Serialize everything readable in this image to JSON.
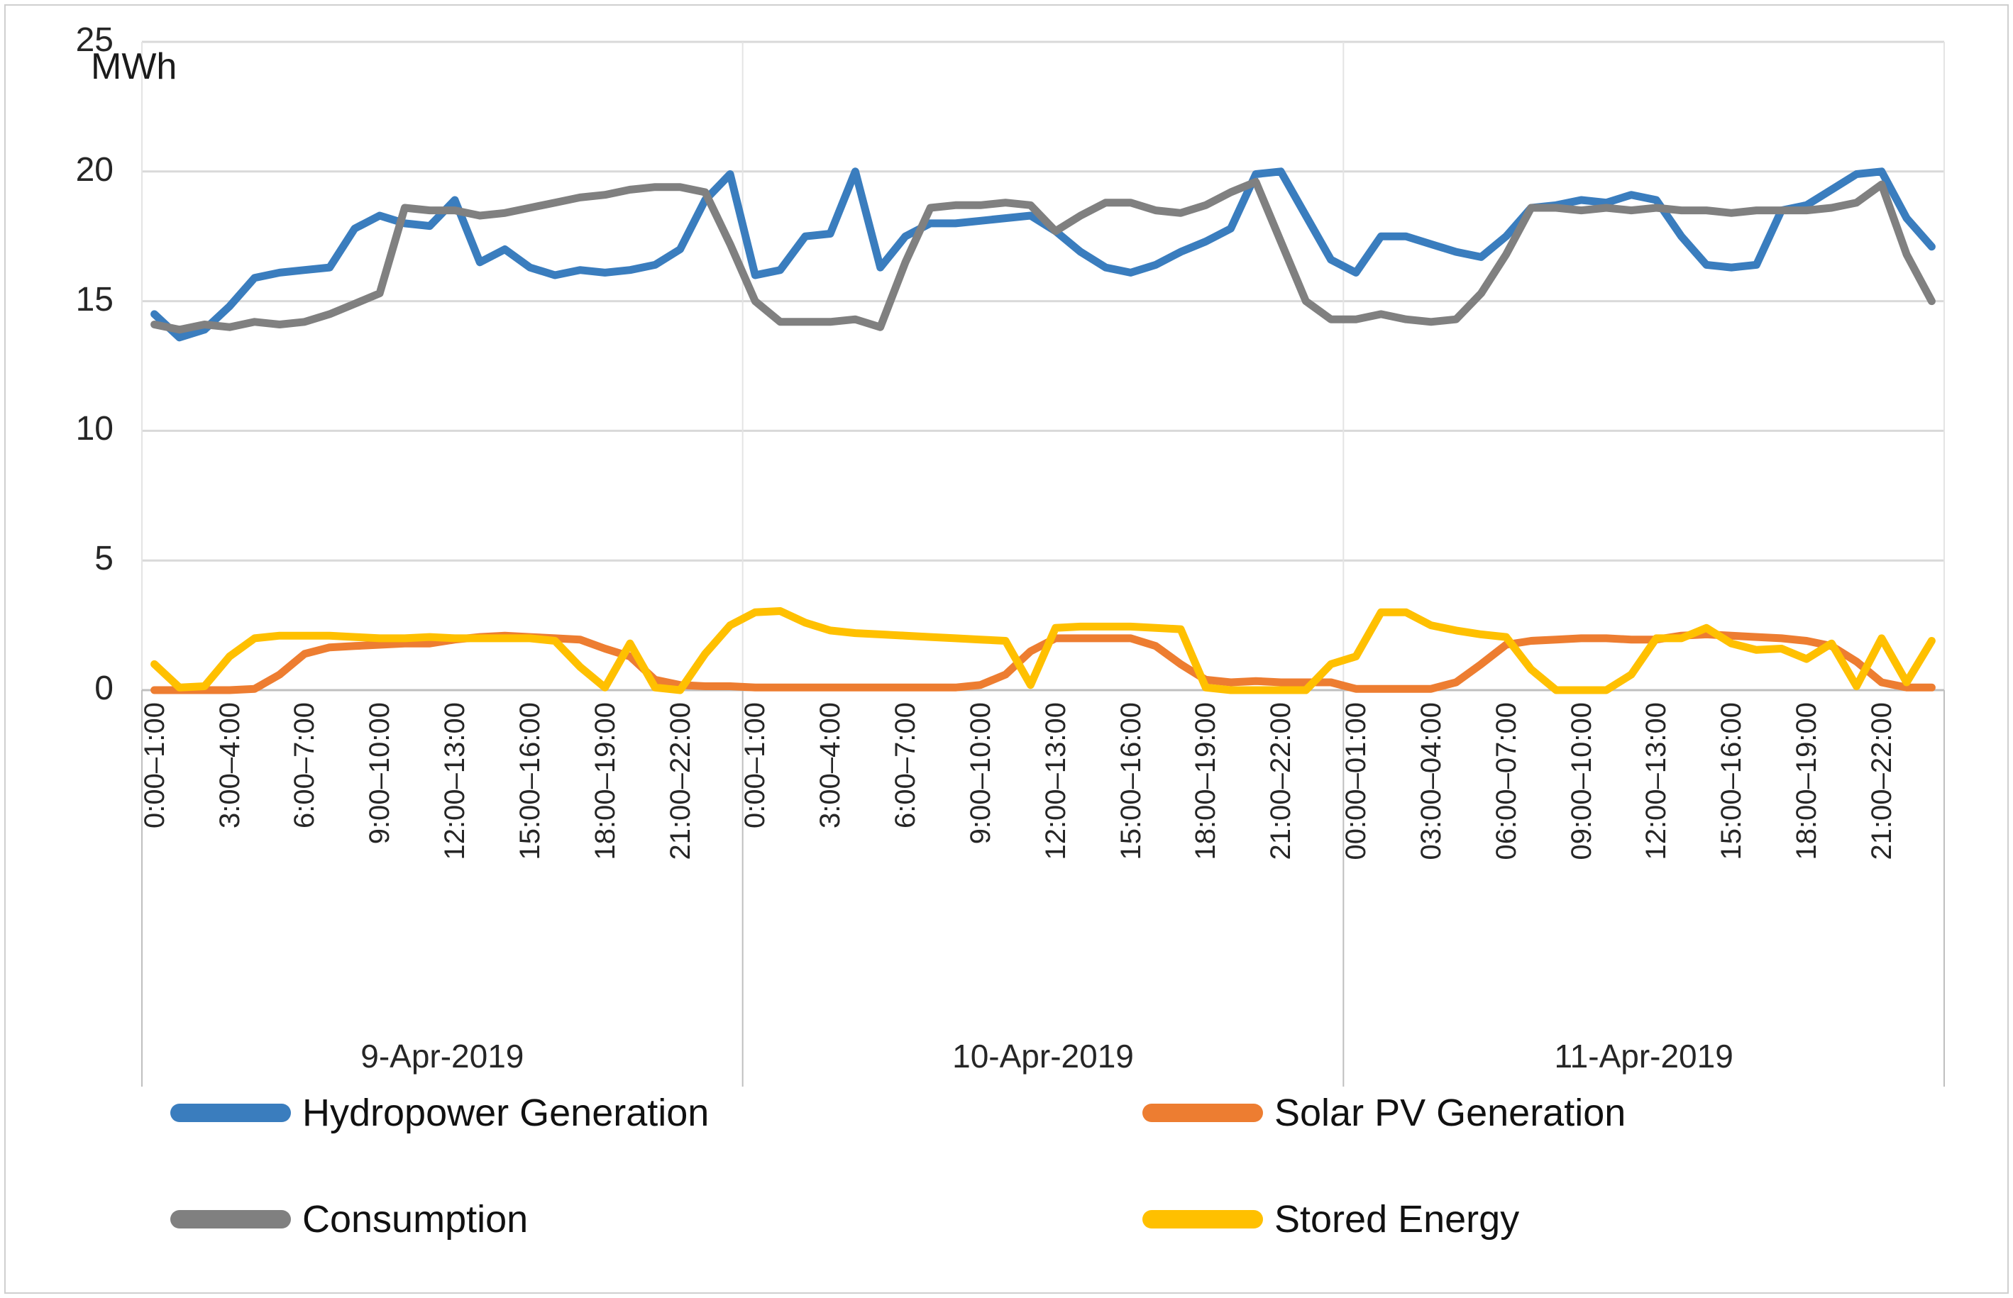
{
  "chart_data": {
    "type": "line",
    "title": "MWh",
    "ylabel": "MWh",
    "y_axis": {
      "min": 0,
      "max": 25,
      "tick_interval": 5,
      "ticks": [
        0,
        5,
        10,
        15,
        20,
        25
      ]
    },
    "x_axis": {
      "grouping": "3 days x 24 hourly intervals",
      "tick_hours": [
        0,
        3,
        6,
        9,
        12,
        15,
        18,
        21
      ],
      "days": [
        {
          "label": "9-Apr-2019",
          "tick_labels": [
            "0:00–1:00",
            "3:00–4:00",
            "6:00–7:00",
            "9:00–10:00",
            "12:00–13:00",
            "15:00–16:00",
            "18:00–19:00",
            "21:00–22:00"
          ]
        },
        {
          "label": "10-Apr-2019",
          "tick_labels": [
            "0:00–1:00",
            "3:00–4:00",
            "6:00–7:00",
            "9:00–10:00",
            "12:00–13:00",
            "15:00–16:00",
            "18:00–19:00",
            "21:00–22:00"
          ]
        },
        {
          "label": "11-Apr-2019",
          "tick_labels": [
            "00:00–01:00",
            "03:00–04:00",
            "06:00–07:00",
            "09:00–10:00",
            "12:00–13:00",
            "15:00–16:00",
            "18:00–19:00",
            "21:00–22:00"
          ]
        }
      ]
    },
    "grid": {
      "horizontal": true,
      "color": "#d9d9d9",
      "axis_color": "#bfbfbf"
    },
    "legend": {
      "position": "bottom",
      "columns": 2
    },
    "series": [
      {
        "name": "Hydropower Generation",
        "color": "#3a7dbe",
        "values": [
          14.5,
          13.6,
          13.9,
          14.8,
          15.9,
          16.1,
          16.2,
          16.3,
          17.8,
          18.3,
          18.0,
          17.9,
          18.9,
          16.5,
          17.0,
          16.3,
          16.0,
          16.2,
          16.1,
          16.2,
          16.4,
          17.0,
          18.9,
          19.9,
          16.0,
          16.2,
          17.5,
          17.6,
          20.0,
          16.3,
          17.5,
          18.0,
          18.0,
          18.1,
          18.2,
          18.3,
          17.7,
          16.9,
          16.3,
          16.1,
          16.4,
          16.9,
          17.3,
          17.8,
          19.9,
          20.0,
          18.3,
          16.6,
          16.1,
          17.5,
          17.5,
          17.2,
          16.9,
          16.7,
          17.5,
          18.6,
          18.7,
          18.9,
          18.8,
          19.1,
          18.9,
          17.5,
          16.4,
          16.3,
          16.4,
          18.5,
          18.7,
          19.3,
          19.9,
          20.0,
          18.2,
          17.1
        ]
      },
      {
        "name": "Solar PV Generation",
        "color": "#ed7d31",
        "values": [
          0,
          0,
          0,
          0,
          0.05,
          0.6,
          1.4,
          1.65,
          1.7,
          1.75,
          1.8,
          1.8,
          1.95,
          2.05,
          2.1,
          2.05,
          2.0,
          1.95,
          1.6,
          1.3,
          0.4,
          0.2,
          0.15,
          0.15,
          0.1,
          0.1,
          0.1,
          0.1,
          0.1,
          0.1,
          0.1,
          0.1,
          0.1,
          0.2,
          0.6,
          1.5,
          2.0,
          2.0,
          2.0,
          2.0,
          1.7,
          1.0,
          0.4,
          0.3,
          0.35,
          0.3,
          0.3,
          0.3,
          0.05,
          0.05,
          0.05,
          0.05,
          0.3,
          1.0,
          1.75,
          1.9,
          1.95,
          2.0,
          2.0,
          1.95,
          1.95,
          2.1,
          2.15,
          2.1,
          2.05,
          2.0,
          1.9,
          1.7,
          1.1,
          0.3,
          0.1,
          0.1
        ]
      },
      {
        "name": "Consumption",
        "color": "#808080",
        "values": [
          14.1,
          13.9,
          14.1,
          14.0,
          14.2,
          14.1,
          14.2,
          14.5,
          14.9,
          15.3,
          18.6,
          18.5,
          18.5,
          18.3,
          18.4,
          18.6,
          18.8,
          19.0,
          19.1,
          19.3,
          19.4,
          19.4,
          19.2,
          17.2,
          15.0,
          14.2,
          14.2,
          14.2,
          14.3,
          14.0,
          16.5,
          18.6,
          18.7,
          18.7,
          18.8,
          18.7,
          17.7,
          18.3,
          18.8,
          18.8,
          18.5,
          18.4,
          18.7,
          19.2,
          19.6,
          17.3,
          15.0,
          14.3,
          14.3,
          14.5,
          14.3,
          14.2,
          14.3,
          15.3,
          16.8,
          18.6,
          18.6,
          18.5,
          18.6,
          18.5,
          18.6,
          18.5,
          18.5,
          18.4,
          18.5,
          18.5,
          18.5,
          18.6,
          18.8,
          19.5,
          16.8,
          15.0
        ]
      },
      {
        "name": "Stored Energy",
        "color": "#ffc000",
        "values": [
          1.0,
          0.1,
          0.15,
          1.3,
          2.0,
          2.1,
          2.1,
          2.1,
          2.05,
          2.0,
          2.0,
          2.05,
          2.0,
          2.0,
          2.0,
          2.0,
          1.9,
          0.9,
          0.1,
          1.8,
          0.1,
          0,
          1.4,
          2.5,
          3.0,
          3.05,
          2.6,
          2.3,
          2.2,
          2.15,
          2.1,
          2.05,
          2.0,
          1.95,
          1.9,
          0.2,
          2.4,
          2.45,
          2.45,
          2.45,
          2.4,
          2.35,
          0.1,
          0,
          0,
          0,
          0,
          1.0,
          1.3,
          3.0,
          3.0,
          2.5,
          2.3,
          2.15,
          2.05,
          0.8,
          0,
          0,
          0,
          0.6,
          2.0,
          2.0,
          2.4,
          1.8,
          1.55,
          1.6,
          1.2,
          1.8,
          0.15,
          2.0,
          0.3,
          1.9
        ]
      }
    ]
  }
}
